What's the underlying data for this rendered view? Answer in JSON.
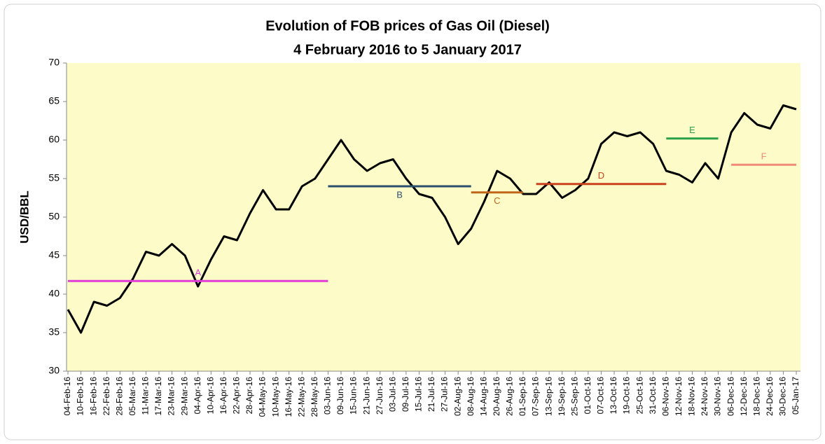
{
  "chart_data": {
    "type": "line",
    "title": "Evolution of FOB prices of Gas Oil (Diesel)",
    "subtitle": "4 February 2016 to 5 January 2017",
    "y_label": "USD/BBL",
    "categories": [
      "04-Feb-16",
      "10-Feb-16",
      "16-Feb-16",
      "22-Feb-16",
      "28-Feb-16",
      "05-Mar-16",
      "11-Mar-16",
      "17-Mar-16",
      "23-Mar-16",
      "29-Mar-16",
      "04-Apr-16",
      "10-Apr-16",
      "16-Apr-16",
      "22-Apr-16",
      "28-Apr-16",
      "04-May-16",
      "10-May-16",
      "16-May-16",
      "22-May-16",
      "28-May-16",
      "03-Jun-16",
      "09-Jun-16",
      "15-Jun-16",
      "21-Jun-16",
      "27-Jun-16",
      "03-Jul-16",
      "09-Jul-16",
      "15-Jul-16",
      "21-Jul-16",
      "27-Jul-16",
      "02-Aug-16",
      "08-Aug-16",
      "14-Aug-16",
      "20-Aug-16",
      "26-Aug-16",
      "01-Sep-16",
      "07-Sep-16",
      "13-Sep-16",
      "19-Sep-16",
      "25-Sep-16",
      "01-Oct-16",
      "07-Oct-16",
      "13-Oct-16",
      "19-Oct-16",
      "25-Oct-16",
      "31-Oct-16",
      "06-Nov-16",
      "12-Nov-16",
      "18-Nov-16",
      "24-Nov-16",
      "30-Nov-16",
      "06-Dec-16",
      "12-Dec-16",
      "18-Dec-16",
      "24-Dec-16",
      "30-Dec-16",
      "05-Jan-17"
    ],
    "values": [
      38,
      35,
      39,
      38.5,
      39.5,
      42,
      45.5,
      45,
      46.5,
      45,
      41,
      44.5,
      47.5,
      47,
      50.5,
      53.5,
      51,
      51,
      54,
      55,
      57.5,
      60,
      57.5,
      56,
      57,
      57.5,
      55,
      53,
      52.5,
      50,
      46.5,
      48.5,
      52,
      56,
      55,
      53,
      53,
      54.5,
      52.5,
      53.5,
      55,
      59.5,
      61,
      60.5,
      61,
      59.5,
      56,
      55.5,
      54.5,
      57,
      55,
      61,
      63.5,
      62,
      61.5,
      64.5,
      64
    ],
    "color": "#000000",
    "ylim": [
      30,
      70
    ],
    "yticks": [
      30,
      35,
      40,
      45,
      50,
      55,
      60,
      65,
      70
    ],
    "segments": [
      {
        "label": "A",
        "value": 41.7,
        "start": "04-Feb-16",
        "end": "03-Jun-16",
        "color": "#e23cd6",
        "label_side": "above"
      },
      {
        "label": "B",
        "value": 54,
        "start": "03-Jun-16",
        "end": "08-Aug-16",
        "color": "#2c4f6e",
        "label_side": "below"
      },
      {
        "label": "C",
        "value": 53.2,
        "start": "08-Aug-16",
        "end": "01-Sep-16",
        "color": "#c0661a",
        "label_side": "below"
      },
      {
        "label": "D",
        "value": 54.3,
        "start": "07-Sep-16",
        "end": "06-Nov-16",
        "color": "#c8421c",
        "label_side": "above"
      },
      {
        "label": "E",
        "value": 60.2,
        "start": "06-Nov-16",
        "end": "30-Nov-16",
        "color": "#2aa04a",
        "label_side": "above"
      },
      {
        "label": "F",
        "value": 56.8,
        "start": "06-Dec-16",
        "end": "05-Jan-17",
        "color": "#f08a78",
        "label_side": "above"
      }
    ]
  }
}
